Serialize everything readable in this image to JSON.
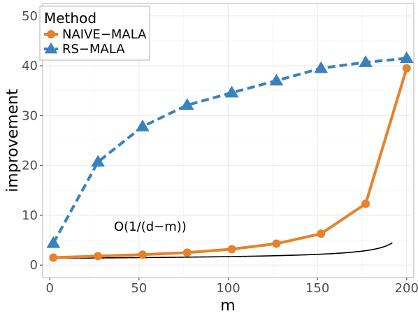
{
  "chart_data": {
    "type": "line",
    "xlabel": "m",
    "ylabel": "improvement",
    "xlim": [
      -4,
      204
    ],
    "ylim": [
      -2.5,
      52.5
    ],
    "x_ticks": [
      0,
      50,
      100,
      150,
      200
    ],
    "y_ticks": [
      0,
      10,
      20,
      30,
      40,
      50
    ],
    "x_tick_labels": [
      "0",
      "50",
      "100",
      "150",
      "200"
    ],
    "y_tick_labels": [
      "0",
      "10",
      "20",
      "30",
      "40",
      "50"
    ],
    "grid": true,
    "legend": {
      "title": "Method",
      "position": "top-left",
      "entries": [
        "NAIVE−MALA",
        "RS−MALA"
      ]
    },
    "series": [
      {
        "name": "NAIVE−MALA",
        "color": "#E6822A",
        "marker": "circle",
        "line": "solid",
        "x": [
          2,
          27,
          52,
          77,
          102,
          127,
          152,
          177,
          200
        ],
        "y": [
          1.5,
          1.8,
          2.1,
          2.5,
          3.2,
          4.3,
          6.3,
          12.3,
          39.5
        ]
      },
      {
        "name": "RS−MALA",
        "color": "#3A82BE",
        "marker": "triangle",
        "line": "dashed",
        "x": [
          2,
          27,
          52,
          77,
          102,
          127,
          152,
          177,
          200
        ],
        "y": [
          4.4,
          20.7,
          27.8,
          32.1,
          34.6,
          37.0,
          39.5,
          40.7,
          41.5
        ]
      }
    ],
    "reference_curve": {
      "label": "O(1/(d−m))",
      "color": "#000000",
      "d": 200,
      "c": 11.0,
      "b": 0.6,
      "x_start": 2,
      "x_end": 192
    }
  }
}
